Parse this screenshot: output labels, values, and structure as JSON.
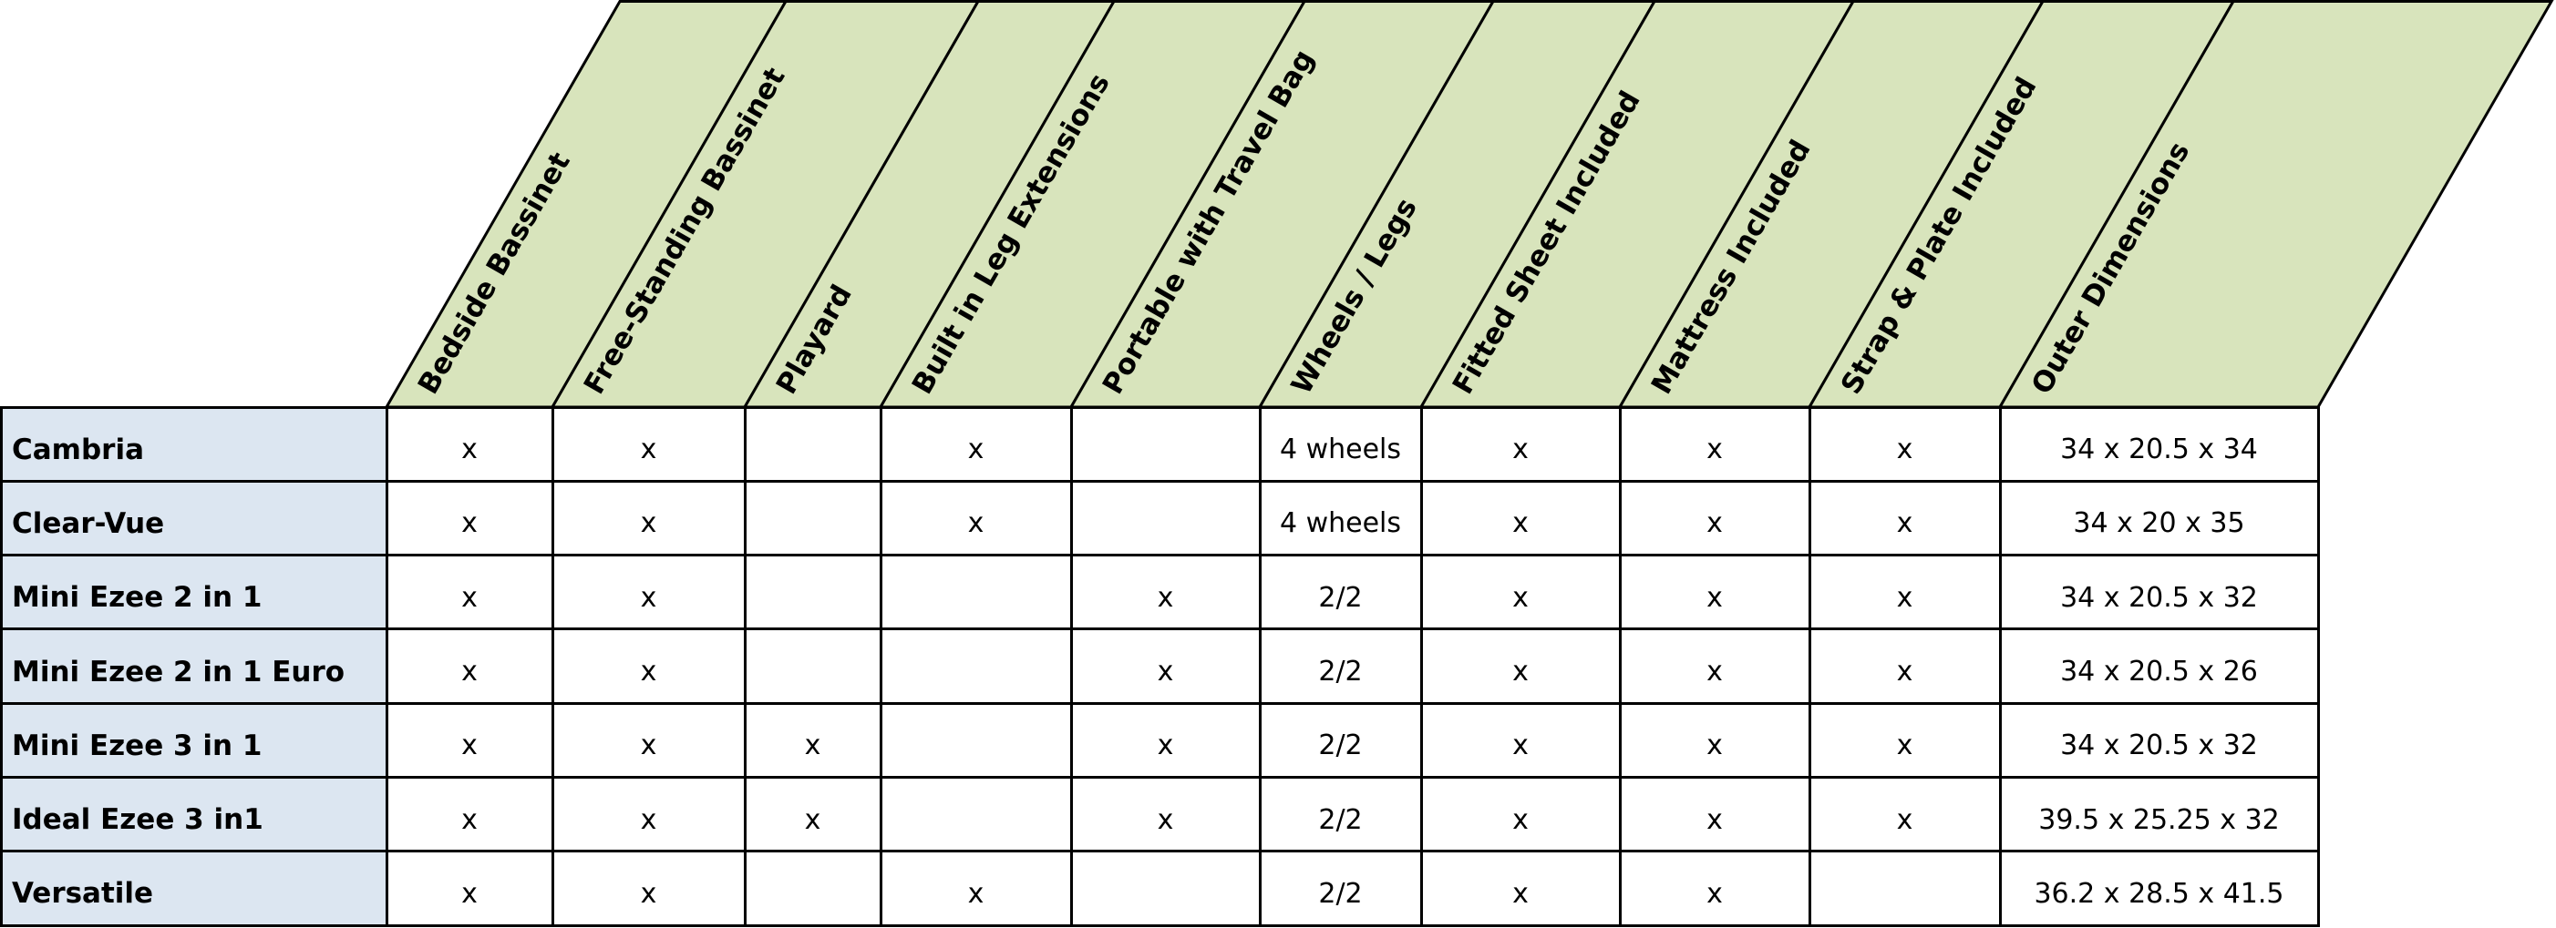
{
  "colors": {
    "header_fill": "#d8e4bc",
    "label_fill": "#dce6f1",
    "border": "#000000"
  },
  "columns": [
    "Bedside Bassinet",
    "Free-Standing Bassinet",
    "Playard",
    "Built in Leg Extensions",
    "Portable with Travel Bag",
    "Wheels / Legs",
    "Fitted Sheet Included",
    "Mattress Included",
    "Strap & Plate Included",
    "Outer Dimensions"
  ],
  "rows": [
    {
      "name": "Cambria",
      "cells": [
        "x",
        "x",
        "",
        "x",
        "",
        "4 wheels",
        "x",
        "x",
        "x",
        "34 x 20.5 x 34"
      ]
    },
    {
      "name": "Clear-Vue",
      "cells": [
        "x",
        "x",
        "",
        "x",
        "",
        "4 wheels",
        "x",
        "x",
        "x",
        "34 x 20 x 35"
      ]
    },
    {
      "name": "Mini Ezee 2 in 1",
      "cells": [
        "x",
        "x",
        "",
        "",
        "x",
        "2/2",
        "x",
        "x",
        "x",
        "34 x 20.5 x 32"
      ]
    },
    {
      "name": "Mini Ezee 2 in 1 Euro",
      "cells": [
        "x",
        "x",
        "",
        "",
        "x",
        "2/2",
        "x",
        "x",
        "x",
        "34 x 20.5 x 26"
      ]
    },
    {
      "name": "Mini Ezee 3 in 1",
      "cells": [
        "x",
        "x",
        "x",
        "",
        "x",
        "2/2",
        "x",
        "x",
        "x",
        "34 x 20.5 x 32"
      ]
    },
    {
      "name": "Ideal Ezee 3 in1",
      "cells": [
        "x",
        "x",
        "x",
        "",
        "x",
        "2/2",
        "x",
        "x",
        "x",
        "39.5 x 25.25 x 32"
      ]
    },
    {
      "name": "Versatile",
      "cells": [
        "x",
        "x",
        "",
        "x",
        "",
        "2/2",
        "x",
        "x",
        "",
        "36.2 x 28.5 x 41.5"
      ]
    }
  ]
}
